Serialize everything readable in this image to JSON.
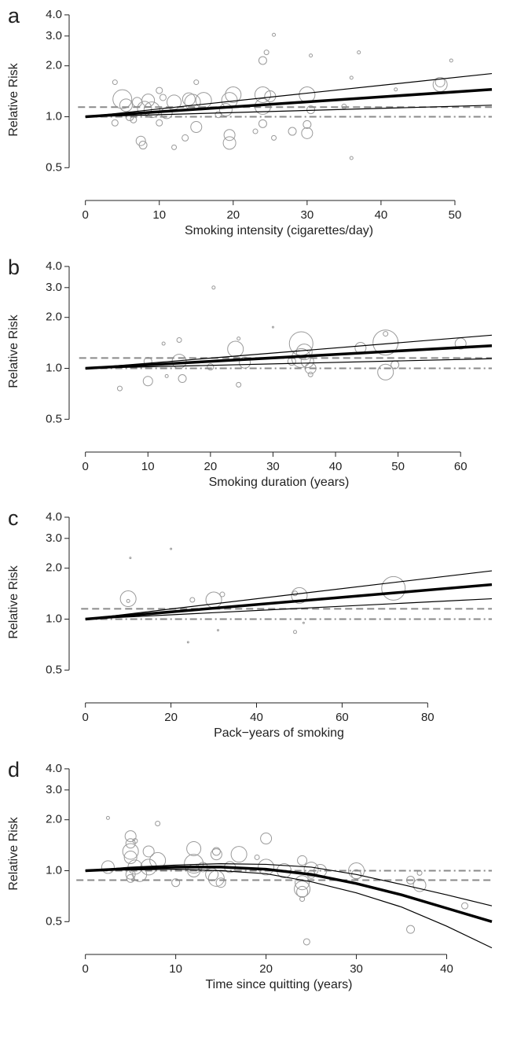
{
  "chart_data": [
    {
      "type": "scatter",
      "label": "a",
      "xlabel": "Smoking intensity (cigarettes/day)",
      "ylabel": "Relative Risk",
      "yscale": "log",
      "xlim": [
        -2.2,
        55
      ],
      "ylim": [
        0.36,
        4.4
      ],
      "xticks": [
        0,
        10,
        20,
        30,
        40,
        50
      ],
      "yticks": [
        0.5,
        {
          "value": 1,
          "label": "1.0"
        },
        {
          "value": 2,
          "label": "2.0"
        },
        {
          "value": 3,
          "label": "3.0"
        },
        {
          "value": 4,
          "label": "4.0"
        }
      ],
      "points": {
        "color": "#9a9a9a",
        "x": [
          4,
          4,
          5,
          5.5,
          6,
          6.5,
          7,
          7.5,
          7.8,
          8,
          8.5,
          9,
          10,
          10,
          10.5,
          11,
          12,
          12,
          13.5,
          14,
          14.5,
          15,
          15,
          16,
          18,
          19,
          19.5,
          20,
          19.5,
          19.5,
          23,
          24,
          24,
          24,
          24,
          24.5,
          25.5,
          25.5,
          25,
          28,
          30,
          30,
          30,
          30.5,
          30.5,
          35,
          36,
          36,
          37,
          42,
          48,
          48,
          49.5
        ],
        "values": [
          0.92,
          1.6,
          1.27,
          1.17,
          1.0,
          0.96,
          1.22,
          0.72,
          0.68,
          1.12,
          1.25,
          1.1,
          0.92,
          1.43,
          1.3,
          1.05,
          1.22,
          0.66,
          0.75,
          1.27,
          1.22,
          0.87,
          1.6,
          1.25,
          1.03,
          1.1,
          1.25,
          1.35,
          0.78,
          0.7,
          0.82,
          1.35,
          1.15,
          0.91,
          2.15,
          2.4,
          3.05,
          0.75,
          1.32,
          0.82,
          1.35,
          0.8,
          0.9,
          1.1,
          2.3,
          1.15,
          1.7,
          0.57,
          2.4,
          1.45,
          1.55,
          1.6,
          2.15
        ],
        "sizes": [
          4,
          3,
          12,
          8,
          5,
          4,
          6,
          6,
          5,
          9,
          8,
          10,
          4,
          4,
          4,
          7,
          9,
          3,
          4,
          8,
          10,
          7,
          3,
          10,
          4,
          8,
          10,
          10,
          7,
          8,
          3,
          10,
          10,
          5,
          5,
          3,
          2,
          3,
          7,
          5,
          10,
          7,
          5,
          5,
          2,
          3,
          2,
          2,
          2,
          2,
          9,
          6,
          2
        ]
      },
      "lines": [
        {
          "style": "dashdot",
          "color": "#8a8a8a",
          "x": [
            0,
            55
          ],
          "values": [
            1,
            1
          ]
        },
        {
          "style": "dashed",
          "color": "#8a8a8a",
          "x": [
            -1,
            55
          ],
          "values": [
            1.14,
            1.14
          ]
        },
        {
          "style": "thin",
          "color": "#000000",
          "x": [
            0,
            55
          ],
          "values": [
            1,
            1.8
          ]
        },
        {
          "style": "thin",
          "color": "#000000",
          "x": [
            0,
            55
          ],
          "values": [
            1,
            1.17
          ]
        },
        {
          "style": "thick",
          "color": "#000000",
          "x": [
            0,
            55
          ],
          "values": [
            1,
            1.45
          ]
        }
      ]
    },
    {
      "type": "scatter",
      "label": "b",
      "xlabel": "Smoking duration (years)",
      "ylabel": "Relative Risk",
      "yscale": "log",
      "xlim": [
        -2.6,
        65
      ],
      "ylim": [
        0.36,
        4.4
      ],
      "xticks": [
        0,
        10,
        20,
        30,
        40,
        50,
        60
      ],
      "yticks": [
        0.5,
        {
          "value": 1,
          "label": "1.0"
        },
        {
          "value": 2,
          "label": "2.0"
        },
        {
          "value": 3,
          "label": "3.0"
        },
        {
          "value": 4,
          "label": "4.0"
        }
      ],
      "points": {
        "color": "#9a9a9a",
        "x": [
          5.5,
          10,
          10,
          12.5,
          13,
          15,
          15,
          15.5,
          20,
          20.5,
          24,
          24.5,
          24.5,
          25.5,
          30,
          33,
          34.5,
          34.5,
          35,
          35.5,
          36,
          36,
          44,
          48,
          48,
          48,
          49.5,
          60
        ],
        "values": [
          0.76,
          0.84,
          1.1,
          1.4,
          0.9,
          1.1,
          1.47,
          0.87,
          1.02,
          3.0,
          1.3,
          1.5,
          0.8,
          1.08,
          1.75,
          1.1,
          1.4,
          1.15,
          1.25,
          1.1,
          1.0,
          0.92,
          1.32,
          1.42,
          0.95,
          1.6,
          1.05,
          1.4
        ],
        "sizes": [
          3,
          6,
          5,
          2,
          2,
          9,
          3,
          5,
          4,
          2,
          10,
          2,
          3,
          7,
          1,
          5,
          15,
          12,
          10,
          8,
          7,
          3,
          7,
          16,
          10,
          3,
          5,
          7
        ]
      },
      "lines": [
        {
          "style": "dashdot",
          "color": "#8a8a8a",
          "x": [
            0,
            65
          ],
          "values": [
            1,
            1
          ]
        },
        {
          "style": "dashed",
          "color": "#8a8a8a",
          "x": [
            -1,
            65
          ],
          "values": [
            1.15,
            1.15
          ]
        },
        {
          "style": "thin",
          "color": "#000000",
          "x": [
            0,
            65
          ],
          "values": [
            1,
            1.57
          ]
        },
        {
          "style": "thin",
          "color": "#000000",
          "x": [
            0,
            65
          ],
          "values": [
            1,
            1.14
          ]
        },
        {
          "style": "thick",
          "color": "#000000",
          "x": [
            0,
            65
          ],
          "values": [
            1,
            1.36
          ]
        }
      ]
    },
    {
      "type": "scatter",
      "label": "c",
      "xlabel": "Pack−years of smoking",
      "ylabel": "Relative Risk",
      "yscale": "log",
      "xlim": [
        -3.8,
        95
      ],
      "ylim": [
        0.36,
        4.4
      ],
      "xticks": [
        0,
        20,
        40,
        60,
        80
      ],
      "yticks": [
        0.5,
        {
          "value": 1,
          "label": "1.0"
        },
        {
          "value": 2,
          "label": "2.0"
        },
        {
          "value": 3,
          "label": "3.0"
        },
        {
          "value": 4,
          "label": "4.0"
        }
      ],
      "points": {
        "color": "#9a9a9a",
        "x": [
          10,
          10.5,
          10,
          20,
          24,
          25,
          30,
          31,
          32,
          50,
          49,
          49,
          51,
          72
        ],
        "values": [
          1.32,
          2.3,
          1.28,
          2.6,
          0.73,
          1.3,
          1.3,
          0.86,
          1.4,
          1.38,
          1.42,
          0.84,
          0.95,
          1.52
        ],
        "sizes": [
          10,
          1,
          2,
          1,
          1,
          3,
          10,
          1,
          3,
          10,
          3,
          2,
          1,
          15
        ]
      },
      "lines": [
        {
          "style": "dashdot",
          "color": "#8a8a8a",
          "x": [
            0,
            95
          ],
          "values": [
            1,
            1
          ]
        },
        {
          "style": "dashed",
          "color": "#8a8a8a",
          "x": [
            -1,
            95
          ],
          "values": [
            1.15,
            1.15
          ]
        },
        {
          "style": "thin",
          "color": "#000000",
          "x": [
            0,
            95
          ],
          "values": [
            1,
            1.93
          ]
        },
        {
          "style": "thin",
          "color": "#000000",
          "x": [
            0,
            95
          ],
          "values": [
            1,
            1.32
          ]
        },
        {
          "style": "thick",
          "color": "#000000",
          "x": [
            0,
            95
          ],
          "values": [
            1,
            1.6
          ]
        }
      ]
    },
    {
      "type": "scatter",
      "label": "d",
      "xlabel": "Time since quitting (years)",
      "ylabel": "Relative Risk",
      "yscale": "log",
      "xlim": [
        -1.8,
        45
      ],
      "ylim": [
        0.36,
        4.4
      ],
      "xticks": [
        0,
        10,
        20,
        30,
        40
      ],
      "yticks": [
        0.5,
        {
          "value": 1,
          "label": "1.0"
        },
        {
          "value": 2,
          "label": "2.0"
        },
        {
          "value": 3,
          "label": "3.0"
        },
        {
          "value": 4,
          "label": "4.0"
        }
      ],
      "points": {
        "color": "#9a9a9a",
        "x": [
          2.5,
          2.5,
          5,
          5,
          5,
          5,
          5.5,
          5,
          5,
          5.5,
          6,
          7,
          7,
          8,
          8,
          10,
          12,
          12,
          12,
          13,
          14,
          14.5,
          14.5,
          14.5,
          15,
          16,
          17,
          19,
          20,
          20,
          22,
          24,
          24,
          24,
          24,
          24,
          24.5,
          25,
          25,
          26,
          30,
          30,
          36,
          36,
          37,
          37,
          42
        ],
        "values": [
          2.05,
          1.05,
          1.6,
          1.45,
          1.3,
          1.2,
          1.05,
          0.95,
          0.9,
          1.5,
          0.95,
          1.05,
          1.3,
          1.9,
          1.15,
          0.85,
          1.35,
          1.1,
          1.0,
          1.05,
          0.95,
          1.3,
          1.25,
          0.9,
          0.85,
          1.05,
          1.25,
          1.2,
          1.55,
          1.05,
          1.0,
          1.15,
          0.85,
          0.78,
          0.75,
          0.68,
          0.38,
          1.02,
          0.95,
          1.0,
          1.0,
          0.95,
          0.45,
          0.88,
          0.97,
          0.82,
          0.62
        ],
        "sizes": [
          2,
          8,
          7,
          6,
          10,
          8,
          9,
          6,
          5,
          3,
          9,
          10,
          7,
          3,
          10,
          5,
          9,
          12,
          8,
          6,
          8,
          5,
          7,
          10,
          6,
          7,
          10,
          3,
          7,
          10,
          9,
          6,
          9,
          10,
          7,
          3,
          4,
          9,
          5,
          8,
          10,
          6,
          5,
          5,
          3,
          8,
          4
        ]
      },
      "lines": [
        {
          "style": "dashdot",
          "color": "#8a8a8a",
          "x": [
            0,
            45
          ],
          "values": [
            1,
            1
          ]
        },
        {
          "style": "dashed",
          "color": "#8a8a8a",
          "x": [
            -1,
            45
          ],
          "values": [
            0.88,
            0.88
          ]
        },
        {
          "style": "thin",
          "color": "#000000",
          "x": [
            0,
            5,
            10,
            15,
            20,
            25,
            30,
            35,
            40,
            45
          ],
          "values": [
            1,
            1.05,
            1.08,
            1.1,
            1.09,
            1.05,
            0.95,
            0.83,
            0.72,
            0.62
          ]
        },
        {
          "style": "thin",
          "color": "#000000",
          "x": [
            0,
            5,
            10,
            15,
            20,
            25,
            30,
            35,
            40,
            45
          ],
          "values": [
            1,
            1.01,
            1.02,
            1.0,
            0.96,
            0.86,
            0.74,
            0.61,
            0.47,
            0.35
          ]
        },
        {
          "style": "thick",
          "color": "#000000",
          "x": [
            0,
            5,
            10,
            15,
            20,
            25,
            30,
            35,
            40,
            45
          ],
          "values": [
            1,
            1.03,
            1.05,
            1.05,
            1.02,
            0.95,
            0.84,
            0.72,
            0.6,
            0.5
          ]
        }
      ]
    }
  ]
}
